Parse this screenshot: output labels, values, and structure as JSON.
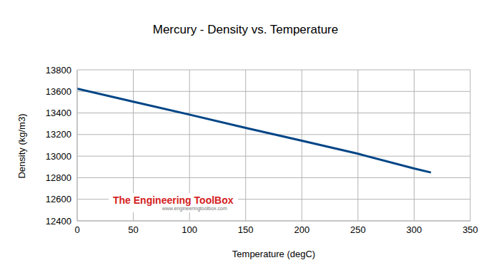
{
  "chart_data": {
    "type": "line",
    "title": "Mercury - Density vs. Temperature",
    "x_label": "Temperature (degC)",
    "y_label": "Density (kg/m3)",
    "annotations": [
      "The Engineering ToolBox",
      "www.engineeringtoolbox.com"
    ],
    "x": [
      0,
      50,
      100,
      150,
      200,
      250,
      300,
      315
    ],
    "values": [
      13625,
      13505,
      13385,
      13262,
      13143,
      13022,
      12885,
      12848
    ],
    "color": "#004586",
    "xlim": [
      0,
      350
    ],
    "xticks": [
      0,
      50,
      100,
      150,
      200,
      250,
      300,
      350
    ],
    "ylim": [
      12400,
      13800
    ],
    "yticks": [
      12400,
      12600,
      12800,
      13000,
      13200,
      13400,
      13600,
      13800
    ],
    "grid": true
  }
}
